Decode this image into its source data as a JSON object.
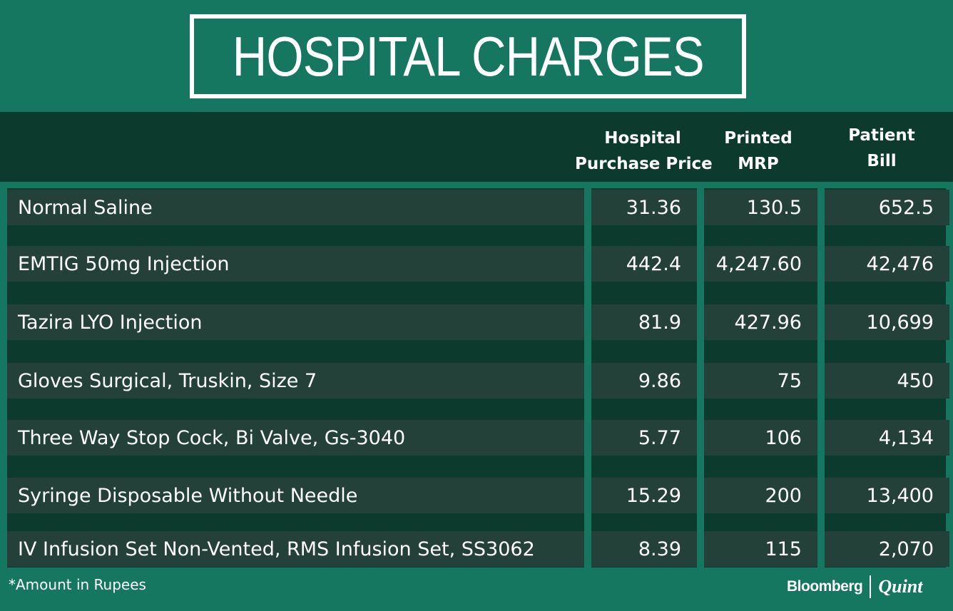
{
  "title": "HOSPITAL CHARGES",
  "columns": {
    "purchase": [
      "Hospital",
      "Purchase Price"
    ],
    "mrp": [
      "Printed",
      "MRP"
    ],
    "bill": [
      "Patient",
      "Bill"
    ]
  },
  "chart_data": {
    "type": "table",
    "title": "HOSPITAL CHARGES",
    "columns": [
      "Hospital Purchase Price",
      "Printed MRP",
      "Patient Bill"
    ],
    "rows": [
      {
        "item": "Normal Saline",
        "purchase": "31.36",
        "mrp": "130.5",
        "bill": "652.5"
      },
      {
        "item": "EMTIG 50mg Injection",
        "purchase": "442.4",
        "mrp": "4,247.60",
        "bill": "42,476"
      },
      {
        "item": "Tazira LYO Injection",
        "purchase": "81.9",
        "mrp": "427.96",
        "bill": "10,699"
      },
      {
        "item": "Gloves Surgical, Truskin, Size 7",
        "purchase": "9.86",
        "mrp": "75",
        "bill": "450"
      },
      {
        "item": "Three Way Stop Cock, Bi Valve, Gs-3040",
        "purchase": "5.77",
        "mrp": "106",
        "bill": "4,134"
      },
      {
        "item": "Syringe Disposable Without Needle",
        "purchase": "15.29",
        "mrp": "200",
        "bill": "13,400"
      },
      {
        "item": "IV Infusion Set Non-Vented, RMS Infusion Set, SS3062",
        "purchase": "8.39",
        "mrp": "115",
        "bill": "2,070"
      }
    ]
  },
  "footnote": "*Amount in Rupees",
  "logo": {
    "left": "Bloomberg",
    "right": "Quint"
  },
  "colors": {
    "background": "#15775f",
    "band": "#0c3a2d",
    "cell": "#234139",
    "text": "#ffffff"
  }
}
